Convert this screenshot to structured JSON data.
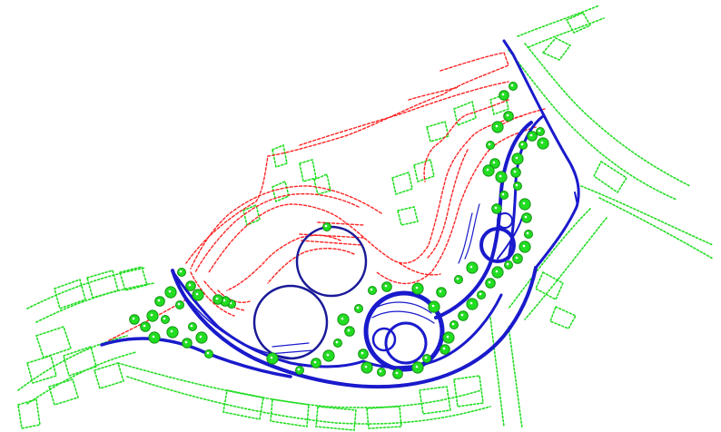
{
  "drawing": {
    "background": "#ffffff",
    "colors": {
      "context_lines": "#22dd22",
      "contours": "#ff2222",
      "paths": "#1a1acc",
      "trees_fill": "#22dd22",
      "tree_outline": "#109010",
      "features": "#1a1a99"
    },
    "icons": {
      "tree": "tree-icon",
      "pond": "pond-icon"
    }
  }
}
